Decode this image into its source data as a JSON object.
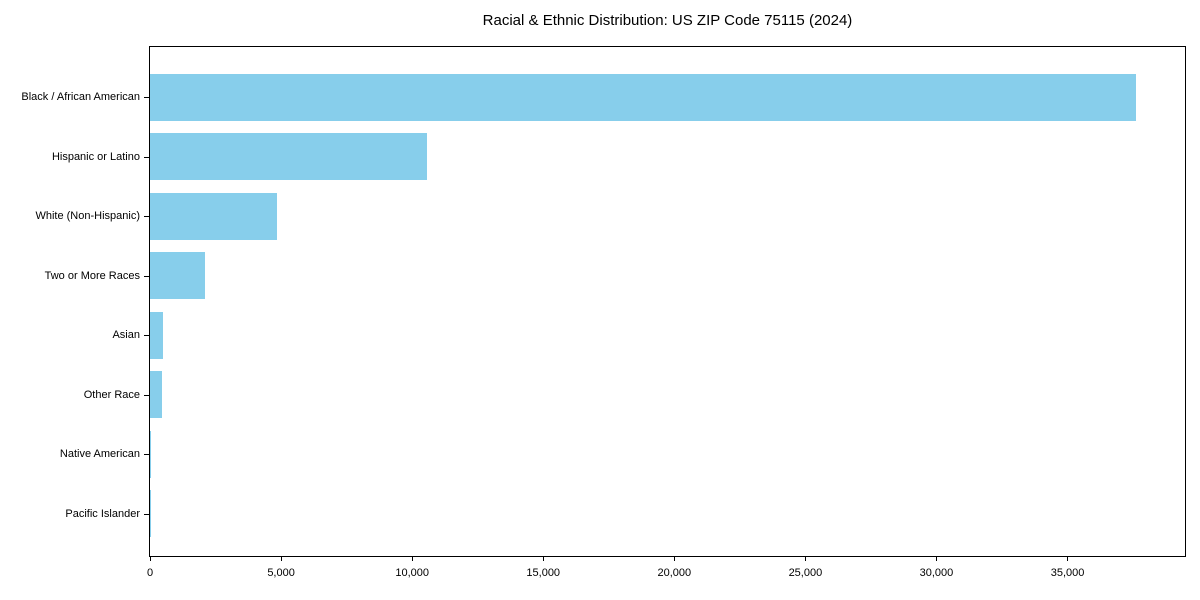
{
  "chart_data": {
    "type": "bar",
    "orientation": "horizontal",
    "title": "Racial & Ethnic Distribution: US ZIP Code 75115 (2024)",
    "categories": [
      "Black / African American",
      "Hispanic or Latino",
      "White (Non-Hispanic)",
      "Two or More Races",
      "Asian",
      "Other Race",
      "Native American",
      "Pacific Islander"
    ],
    "values": [
      37600,
      10580,
      4860,
      2090,
      500,
      450,
      30,
      10
    ],
    "xlabel": "",
    "ylabel": "",
    "xlim": [
      0,
      39480
    ],
    "xticks": [
      0,
      5000,
      10000,
      15000,
      20000,
      25000,
      30000,
      35000
    ],
    "xtick_labels": [
      "0",
      "5,000",
      "10,000",
      "15,000",
      "20,000",
      "25,000",
      "30,000",
      "35,000"
    ],
    "bar_color": "#87CEEB",
    "axis_color": "#000000",
    "background_color": "#ffffff",
    "grid": false,
    "legend": null
  }
}
